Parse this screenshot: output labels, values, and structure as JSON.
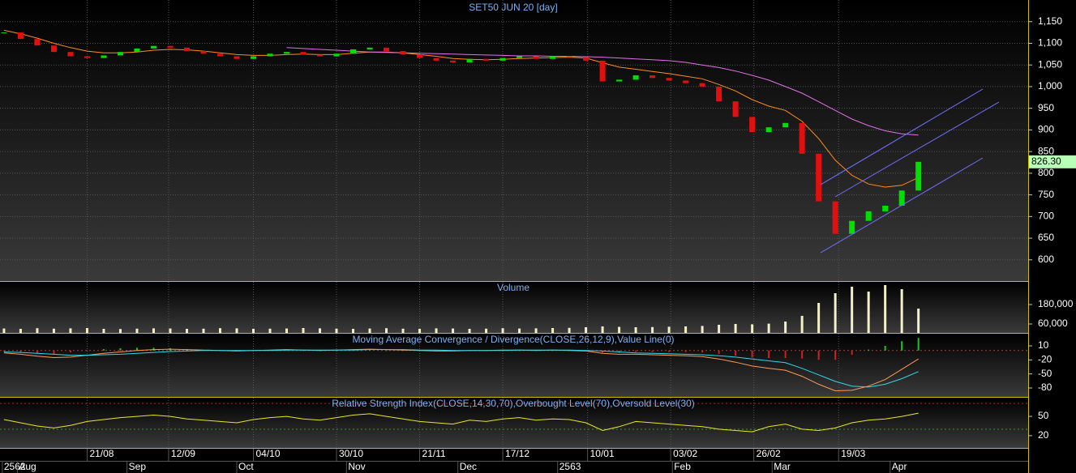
{
  "chart_data": [
    {
      "type": "candlestick",
      "title": "SET50 JUN 20   [day]",
      "up_color": "#00e000",
      "down_color": "#e01010",
      "values": [
        1125,
        1110,
        1095,
        1080,
        1070,
        1066,
        1072,
        1080,
        1088,
        1094,
        1090,
        1082,
        1076,
        1070,
        1064,
        1070,
        1076,
        1080,
        1074,
        1070,
        1076,
        1086,
        1090,
        1082,
        1074,
        1066,
        1060,
        1056,
        1064,
        1060,
        1066,
        1070,
        1064,
        1070,
        1068,
        1060,
        1012,
        1016,
        1026,
        1020,
        1014,
        1008,
        1000,
        966,
        930,
        895,
        906,
        916,
        845,
        735,
        660,
        690,
        712,
        725,
        760,
        826.3
      ],
      "value_labels": [
        null,
        null,
        null,
        null,
        null,
        null,
        null,
        null,
        null,
        null,
        null,
        null,
        null,
        null,
        null,
        null,
        null,
        null,
        null,
        null,
        null,
        null,
        null,
        null,
        null,
        null,
        null,
        null,
        null,
        null,
        null,
        null,
        null,
        null,
        null,
        null,
        null,
        null,
        null,
        null,
        null,
        null,
        null,
        null,
        null,
        null,
        null,
        null,
        null,
        null,
        null,
        null,
        null,
        null,
        null,
        "826.30"
      ],
      "series": [
        {
          "color": "#ff8c1a",
          "values": [
            1130,
            1122,
            1112,
            1100,
            1090,
            1082,
            1078,
            1078,
            1080,
            1084,
            1086,
            1085,
            1082,
            1078,
            1074,
            1072,
            1072,
            1074,
            1075,
            1074,
            1074,
            1077,
            1080,
            1080,
            1078,
            1074,
            1070,
            1065,
            1063,
            1062,
            1063,
            1065,
            1066,
            1067,
            1068,
            1066,
            1055,
            1045,
            1040,
            1035,
            1030,
            1024,
            1018,
            1005,
            990,
            970,
            955,
            945,
            920,
            880,
            830,
            795,
            775,
            768,
            772,
            790
          ]
        },
        {
          "color": "#e070e8",
          "values": [
            null,
            null,
            null,
            null,
            null,
            null,
            null,
            null,
            null,
            null,
            null,
            null,
            null,
            null,
            null,
            null,
            null,
            1090,
            1088,
            1086,
            1084,
            1082,
            1080,
            1079,
            1078,
            1077,
            1076,
            1075,
            1074,
            1073,
            1072,
            1071,
            1071,
            1070,
            1070,
            1069,
            1068,
            1066,
            1064,
            1062,
            1060,
            1056,
            1050,
            1044,
            1036,
            1026,
            1015,
            1000,
            985,
            965,
            945,
            925,
            910,
            898,
            891,
            888
          ]
        }
      ],
      "ylim": [
        551,
        1200
      ],
      "yticks": [
        600,
        650,
        700,
        750,
        800,
        850,
        900,
        950,
        {
          "value": 1000,
          "label": "1,000"
        },
        {
          "value": 1050,
          "label": "1,050"
        },
        {
          "value": 1100,
          "label": "1,100"
        },
        {
          "value": 1150,
          "label": "1,150"
        }
      ],
      "grid": true
    },
    {
      "type": "bar",
      "title": "Volume",
      "color": "#f4f0c8",
      "values": [
        32000,
        30000,
        34000,
        31000,
        33000,
        35000,
        30000,
        29000,
        31000,
        33000,
        32000,
        30000,
        31000,
        34000,
        33000,
        30000,
        31000,
        32000,
        35000,
        33000,
        31000,
        30000,
        32000,
        34000,
        31000,
        30000,
        33000,
        32000,
        30000,
        31000,
        34000,
        32000,
        33000,
        35000,
        36000,
        40000,
        45000,
        42000,
        40000,
        41000,
        43000,
        45000,
        48000,
        55000,
        60000,
        58000,
        62000,
        75000,
        110000,
        190000,
        250000,
        290000,
        260000,
        300000,
        275000,
        155000
      ],
      "ylim": [
        5000,
        320000
      ],
      "yticks": [
        {
          "value": 60000,
          "label": "60,000"
        },
        {
          "value": 180000,
          "label": "180,000"
        }
      ]
    },
    {
      "type": "macd",
      "title": "Moving Average Convergence / Divergence(CLOSE,26,12,9),Value Line(0)",
      "series": [
        {
          "color": "#ff9a50",
          "values": [
            -5,
            -8,
            -12,
            -15,
            -14,
            -10,
            -6,
            -3,
            0,
            2,
            3,
            2,
            1,
            0,
            -1,
            0,
            1,
            2,
            1,
            0,
            1,
            2,
            3,
            2,
            1,
            0,
            -1,
            -1,
            0,
            0,
            1,
            1,
            0,
            1,
            0,
            -1,
            -6,
            -8,
            -8,
            -9,
            -10,
            -11,
            -13,
            -18,
            -25,
            -33,
            -38,
            -42,
            -55,
            -72,
            -86,
            -85,
            -76,
            -62,
            -40,
            -18
          ]
        },
        {
          "color": "#30d8e8",
          "values": [
            -3,
            -4,
            -6,
            -8,
            -10,
            -10,
            -9,
            -8,
            -6,
            -4,
            -2,
            -1,
            0,
            0,
            0,
            0,
            0,
            1,
            1,
            1,
            1,
            1,
            2,
            2,
            2,
            1,
            1,
            0,
            0,
            0,
            0,
            1,
            1,
            1,
            1,
            0,
            -1,
            -3,
            -5,
            -6,
            -7,
            -8,
            -9,
            -11,
            -14,
            -18,
            -22,
            -26,
            -38,
            -52,
            -66,
            -76,
            -78,
            -72,
            -60,
            -45
          ]
        }
      ],
      "histogram": {
        "up_color": "#20c020",
        "down_color": "#d02020",
        "values": [
          -2,
          -4,
          -6,
          -7,
          -4,
          0,
          3,
          5,
          6,
          6,
          5,
          3,
          1,
          0,
          -1,
          0,
          1,
          1,
          0,
          -1,
          0,
          1,
          1,
          0,
          -1,
          -1,
          -2,
          -1,
          0,
          0,
          1,
          0,
          -1,
          0,
          -1,
          -1,
          -5,
          -5,
          -3,
          -3,
          -3,
          -3,
          -4,
          -7,
          -11,
          -15,
          -16,
          -16,
          -17,
          -20,
          -20,
          -9,
          2,
          10,
          20,
          27
        ]
      },
      "value_line": 0,
      "ylim": [
        -99,
        36
      ],
      "yticks": [
        -80,
        -50,
        -20,
        10
      ]
    },
    {
      "type": "line",
      "title": "Relative Strength Index(CLOSE,14,30,70),Overbought Level(70),Oversold Level(30)",
      "color": "#e8e820",
      "values": [
        45,
        40,
        35,
        32,
        36,
        42,
        45,
        48,
        50,
        52,
        50,
        46,
        44,
        42,
        40,
        45,
        48,
        50,
        46,
        44,
        48,
        52,
        54,
        50,
        46,
        42,
        40,
        38,
        44,
        42,
        46,
        48,
        44,
        46,
        45,
        40,
        28,
        34,
        42,
        40,
        38,
        36,
        34,
        30,
        28,
        26,
        34,
        38,
        30,
        28,
        32,
        40,
        44,
        46,
        50,
        55
      ],
      "levels": [
        {
          "value": 70,
          "color": "#c02020"
        },
        {
          "value": 30,
          "color": "#20a020"
        }
      ],
      "ylim": [
        1,
        79
      ],
      "yticks": [
        20,
        50
      ],
      "xlim": [
        -0.24,
        61.6
      ],
      "xticks": [
        {
          "value": 5,
          "label": "21/08"
        },
        {
          "value": 9.9,
          "label": "12/09"
        },
        {
          "value": 15,
          "label": "04/10"
        },
        {
          "value": 20,
          "label": "30/10"
        },
        {
          "value": 25,
          "label": "21/11"
        },
        {
          "value": 30,
          "label": "17/12"
        },
        {
          "value": 35.1,
          "label": "10/01"
        },
        {
          "value": 40.1,
          "label": "03/02"
        },
        {
          "value": 45.1,
          "label": "26/02"
        },
        {
          "value": 50.2,
          "label": "19/03"
        }
      ],
      "month_ticks": [
        {
          "value": -0.1,
          "label": "2562"
        },
        {
          "value": 0.8,
          "label": "Aug"
        },
        {
          "value": 7.4,
          "label": "Sep"
        },
        {
          "value": 14,
          "label": "Oct"
        },
        {
          "value": 20.6,
          "label": "Nov"
        },
        {
          "value": 27.3,
          "label": "Dec"
        },
        {
          "value": 33.3,
          "label": "2563"
        },
        {
          "value": 40.2,
          "label": "Feb"
        },
        {
          "value": 46.2,
          "label": "Mar"
        },
        {
          "value": 53.3,
          "label": "Apr"
        }
      ]
    }
  ]
}
